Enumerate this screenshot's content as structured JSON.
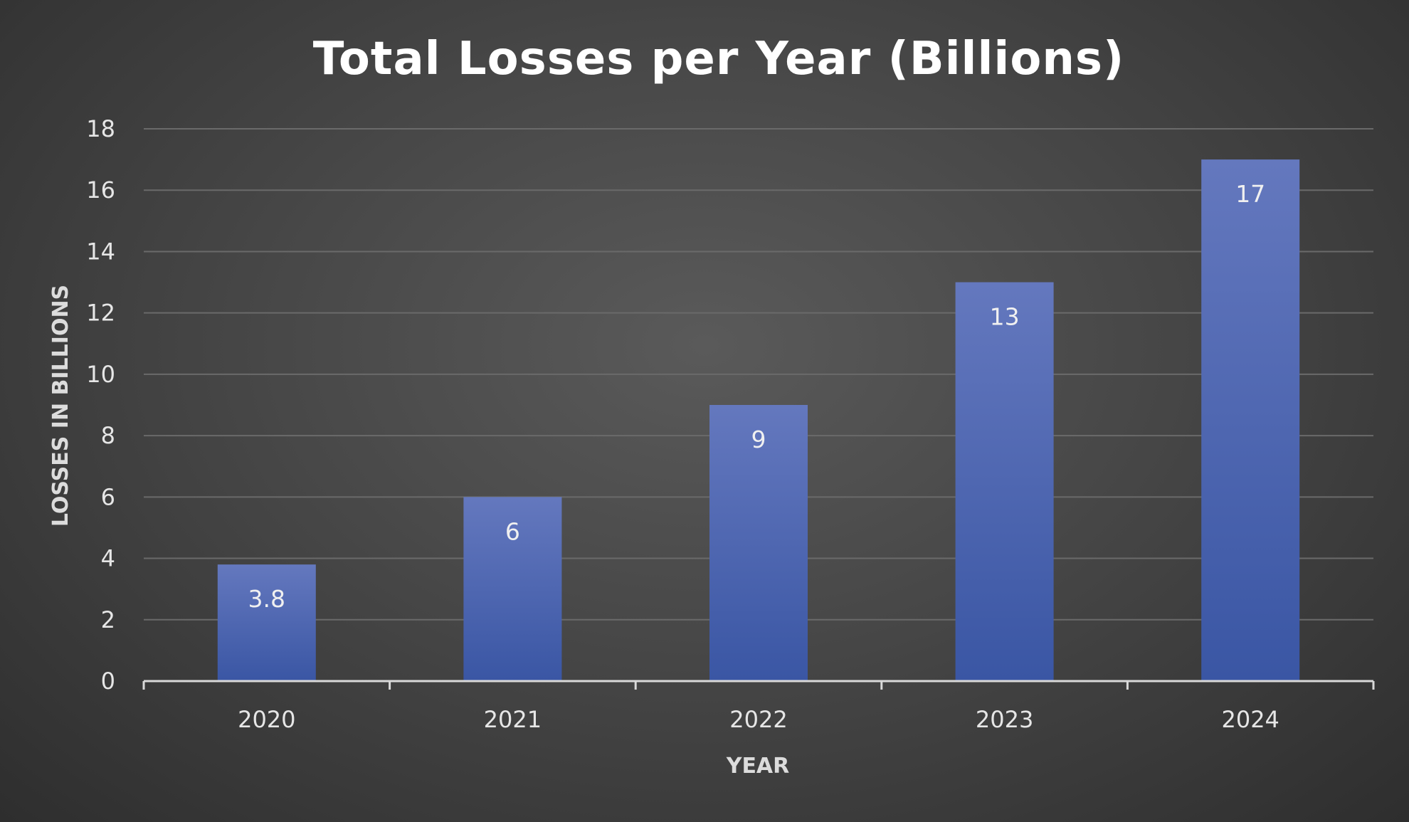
{
  "chart_data": {
    "type": "bar",
    "title": "Total Losses per Year (Billions)",
    "xlabel": "YEAR",
    "ylabel": "LOSSES IN BILLIONS",
    "categories": [
      "2020",
      "2021",
      "2022",
      "2023",
      "2024"
    ],
    "values": [
      3.8,
      6,
      9,
      13,
      17
    ],
    "data_labels": [
      "3.8",
      "6",
      "9",
      "13",
      "17"
    ],
    "ylim": [
      0,
      18
    ],
    "yticks": [
      0,
      2,
      4,
      6,
      8,
      10,
      12,
      14,
      16,
      18
    ],
    "ytick_labels": [
      "0",
      "2",
      "4",
      "6",
      "8",
      "10",
      "12",
      "14",
      "16",
      "18"
    ],
    "grid": true,
    "legend": "none",
    "colors": {
      "bar_top": "#6478be",
      "bar_bottom": "#3a56a4"
    }
  }
}
